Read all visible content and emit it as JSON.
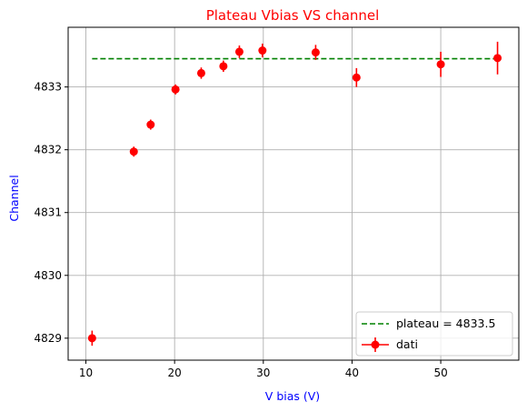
{
  "chart_data": {
    "type": "scatter",
    "title": "Plateau Vbias VS channel",
    "xlabel": "V bias (V)",
    "ylabel": "Channel",
    "xlim": [
      8.0,
      58.8
    ],
    "ylim": [
      4828.65,
      4833.95
    ],
    "x_ticks": [
      10,
      20,
      30,
      40,
      50
    ],
    "y_ticks": [
      4829,
      4830,
      4831,
      4832,
      4833
    ],
    "grid": true,
    "legend_position": "lower right",
    "colors": {
      "title": "#ff0000",
      "axis_labels": "#0000ff",
      "data": "#ff0000",
      "plateau_line": "#008000",
      "grid": "#b0b0b0",
      "axes": "#000000"
    },
    "series": [
      {
        "name": "dati",
        "style": "points-with-errorbars",
        "x": [
          10.7,
          15.4,
          17.3,
          20.1,
          23.0,
          25.5,
          27.3,
          29.9,
          35.9,
          40.5,
          50.0,
          56.4
        ],
        "y": [
          4829.0,
          4831.97,
          4832.4,
          4832.96,
          4833.22,
          4833.33,
          4833.56,
          4833.58,
          4833.55,
          4833.15,
          4833.36,
          4833.46
        ],
        "yerr": [
          0.12,
          0.08,
          0.08,
          0.08,
          0.09,
          0.09,
          0.1,
          0.11,
          0.12,
          0.15,
          0.2,
          0.26
        ]
      },
      {
        "name": "plateau = 4833.5",
        "style": "dashed-line",
        "x": [
          10.7,
          56.4
        ],
        "y": [
          4833.45,
          4833.45
        ]
      }
    ]
  }
}
